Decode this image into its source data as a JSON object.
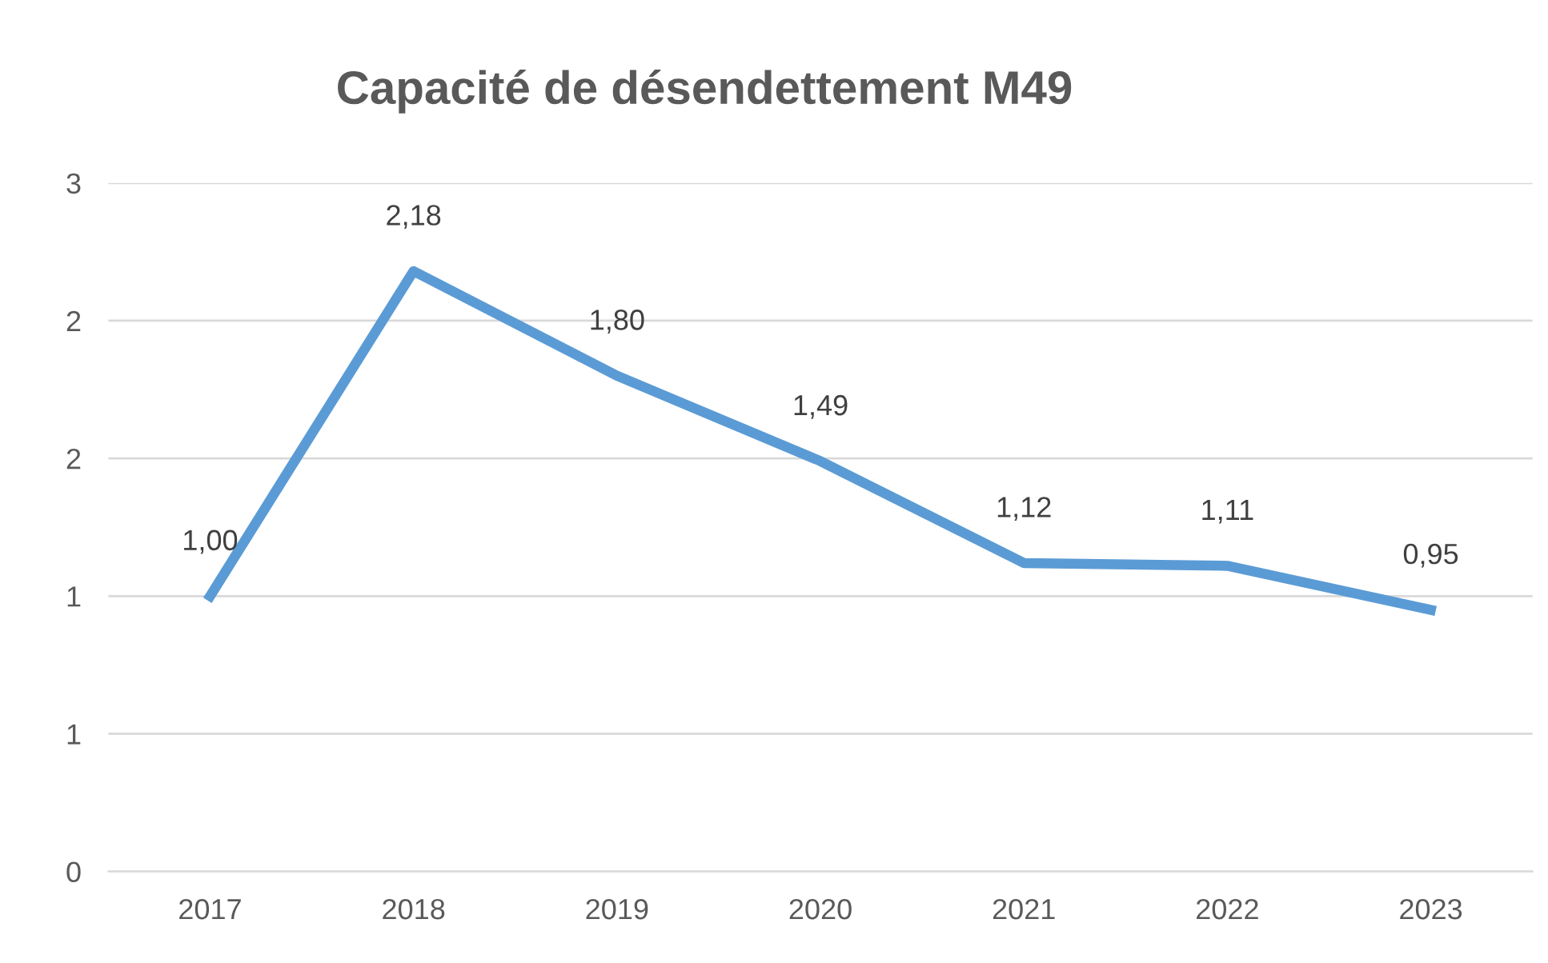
{
  "chart_data": {
    "type": "line",
    "title": "Capacité de désendettement M49",
    "categories": [
      "2017",
      "2018",
      "2019",
      "2020",
      "2021",
      "2022",
      "2023"
    ],
    "series": [
      {
        "color": "#5b9bd5",
        "values": [
          1.0,
          2.18,
          1.8,
          1.49,
          1.12,
          1.11,
          0.95
        ],
        "value_labels": [
          "1,00",
          "2,18",
          "1,80",
          "1,49",
          "1,12",
          "1,11",
          "0,95"
        ]
      }
    ],
    "ylim": [
      0,
      2.5
    ],
    "yticks": [
      0,
      {
        "value": 0.5,
        "label": "1"
      },
      {
        "value": 1,
        "label": "1"
      },
      {
        "value": 1.5,
        "label": "2"
      },
      {
        "value": 2,
        "label": "2"
      },
      {
        "value": 2.5,
        "label": "3"
      }
    ],
    "grid": "y",
    "marker": "none",
    "line_style": "solid",
    "legend": false
  }
}
